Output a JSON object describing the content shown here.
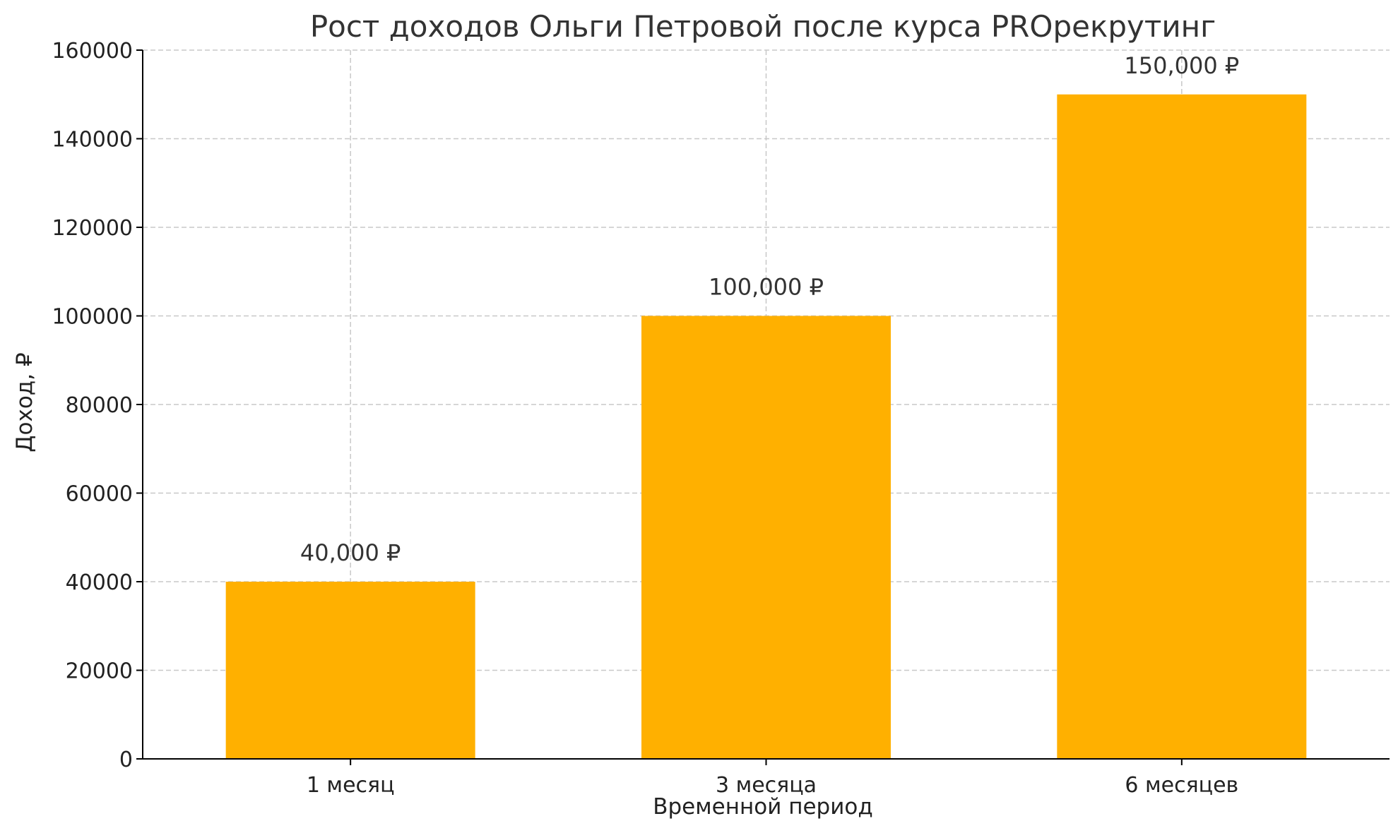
{
  "chart_data": {
    "type": "bar",
    "title": "Рост доходов Ольги Петровой после курса PROрекрутинг",
    "xlabel": "Временной период",
    "ylabel": "Доход, ₽",
    "categories": [
      "1 месяц",
      "3 месяца",
      "6 месяцев"
    ],
    "values": [
      40000,
      100000,
      150000
    ],
    "data_labels": [
      "40,000 ₽",
      "100,000 ₽",
      "150,000 ₽"
    ],
    "ylim": [
      0,
      160000
    ],
    "y_ticks": [
      0,
      20000,
      40000,
      60000,
      80000,
      100000,
      120000,
      140000,
      160000
    ],
    "grid": true,
    "bar_color": "#FFB000"
  }
}
